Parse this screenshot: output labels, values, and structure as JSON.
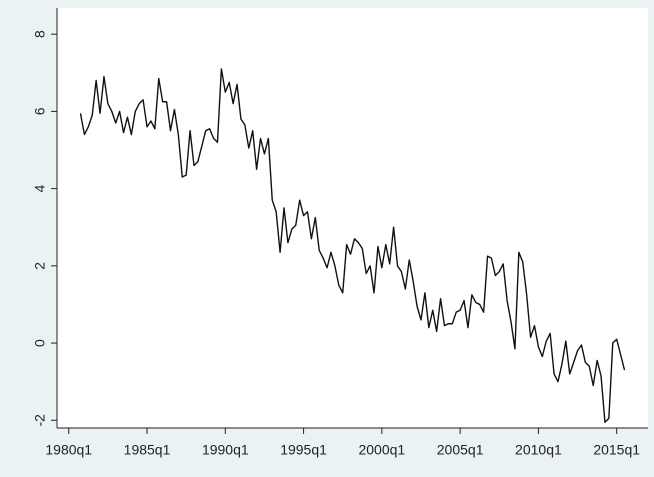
{
  "chart_data": {
    "type": "line",
    "x": [
      "1980q4",
      "1981q1",
      "1981q2",
      "1981q3",
      "1981q4",
      "1982q1",
      "1982q2",
      "1982q3",
      "1982q4",
      "1983q1",
      "1983q2",
      "1983q3",
      "1983q4",
      "1984q1",
      "1984q2",
      "1984q3",
      "1984q4",
      "1985q1",
      "1985q2",
      "1985q3",
      "1985q4",
      "1986q1",
      "1986q2",
      "1986q3",
      "1986q4",
      "1987q1",
      "1987q2",
      "1987q3",
      "1987q4",
      "1988q1",
      "1988q2",
      "1988q3",
      "1988q4",
      "1989q1",
      "1989q2",
      "1989q3",
      "1989q4",
      "1990q1",
      "1990q2",
      "1990q3",
      "1990q4",
      "1991q1",
      "1991q2",
      "1991q3",
      "1991q4",
      "1992q1",
      "1992q2",
      "1992q3",
      "1992q4",
      "1993q1",
      "1993q2",
      "1993q3",
      "1993q4",
      "1994q1",
      "1994q2",
      "1994q3",
      "1994q4",
      "1995q1",
      "1995q2",
      "1995q3",
      "1995q4",
      "1996q1",
      "1996q2",
      "1996q3",
      "1996q4",
      "1997q1",
      "1997q2",
      "1997q3",
      "1997q4",
      "1998q1",
      "1998q2",
      "1998q3",
      "1998q4",
      "1999q1",
      "1999q2",
      "1999q3",
      "1999q4",
      "2000q1",
      "2000q2",
      "2000q3",
      "2000q4",
      "2001q1",
      "2001q2",
      "2001q3",
      "2001q4",
      "2002q1",
      "2002q2",
      "2002q3",
      "2002q4",
      "2003q1",
      "2003q2",
      "2003q3",
      "2003q4",
      "2004q1",
      "2004q2",
      "2004q3",
      "2004q4",
      "2005q1",
      "2005q2",
      "2005q3",
      "2005q4",
      "2006q1",
      "2006q2",
      "2006q3",
      "2006q4",
      "2007q1",
      "2007q2",
      "2007q3",
      "2007q4",
      "2008q1",
      "2008q2",
      "2008q3",
      "2008q4",
      "2009q1",
      "2009q2",
      "2009q3",
      "2009q4",
      "2010q1",
      "2010q2",
      "2010q3",
      "2010q4",
      "2011q1",
      "2011q2",
      "2011q3",
      "2011q4",
      "2012q1",
      "2012q2",
      "2012q3",
      "2012q4",
      "2013q1",
      "2013q2",
      "2013q3",
      "2013q4",
      "2014q1",
      "2014q2",
      "2014q3",
      "2014q4",
      "2015q1",
      "2015q2",
      "2015q3"
    ],
    "values": [
      5.95,
      5.4,
      5.6,
      5.9,
      6.8,
      5.95,
      6.9,
      6.2,
      6.0,
      5.7,
      6.0,
      5.45,
      5.85,
      5.4,
      6.0,
      6.2,
      6.3,
      5.6,
      5.75,
      5.55,
      6.85,
      6.25,
      6.25,
      5.5,
      6.05,
      5.4,
      4.3,
      4.35,
      5.5,
      4.6,
      4.7,
      5.1,
      5.5,
      5.55,
      5.3,
      5.2,
      7.1,
      6.5,
      6.75,
      6.2,
      6.7,
      5.8,
      5.65,
      5.05,
      5.5,
      4.5,
      5.3,
      4.9,
      5.3,
      3.7,
      3.4,
      2.35,
      3.5,
      2.6,
      2.95,
      3.05,
      3.7,
      3.3,
      3.4,
      2.7,
      3.25,
      2.4,
      2.2,
      1.95,
      2.35,
      2.0,
      1.5,
      1.3,
      2.55,
      2.3,
      2.7,
      2.6,
      2.45,
      1.8,
      2.0,
      1.3,
      2.5,
      1.95,
      2.55,
      2.05,
      3.0,
      2.0,
      1.85,
      1.4,
      2.15,
      1.6,
      0.95,
      0.6,
      1.3,
      0.4,
      0.85,
      0.3,
      1.15,
      0.45,
      0.5,
      0.5,
      0.8,
      0.85,
      1.1,
      0.4,
      1.25,
      1.05,
      1.0,
      0.8,
      2.25,
      2.2,
      1.75,
      1.85,
      2.05,
      1.1,
      0.55,
      -0.15,
      2.35,
      2.1,
      1.25,
      0.15,
      0.45,
      -0.1,
      -0.35,
      0.05,
      0.25,
      -0.8,
      -1.0,
      -0.55,
      0.05,
      -0.8,
      -0.5,
      -0.2,
      -0.05,
      -0.5,
      -0.6,
      -1.1,
      -0.45,
      -0.85,
      -2.05,
      -1.95,
      0.0,
      0.1,
      -0.3,
      -0.7
    ],
    "color": "#111111",
    "xlim": [
      "1979q2",
      "2017q1"
    ],
    "xticks": [
      "1980q1",
      "1985q1",
      "1990q1",
      "1995q1",
      "2000q1",
      "2005q1",
      "2010q1",
      "2015q1"
    ],
    "ylim": [
      -2.2,
      8.6
    ],
    "yticks": [
      -2,
      0,
      2,
      4,
      6,
      8
    ],
    "grid": false
  }
}
